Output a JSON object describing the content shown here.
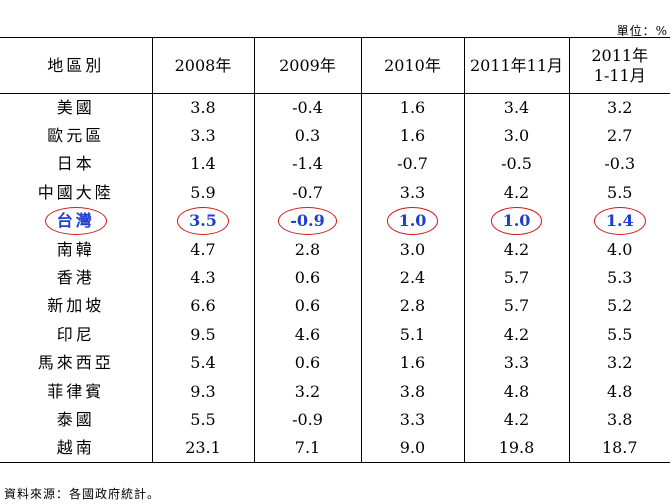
{
  "unit_label": "單位：%",
  "headers": [
    "地區別",
    "2008年",
    "2009年",
    "2010年",
    "2011年11月",
    "2011年",
    "1-11月"
  ],
  "rows": [
    {
      "region": "美國",
      "values": [
        "3.8",
        "-0.4",
        "1.6",
        "3.4",
        "3.2"
      ]
    },
    {
      "region": "歐元區",
      "values": [
        "3.3",
        "0.3",
        "1.6",
        "3.0",
        "2.7"
      ]
    },
    {
      "region": "日本",
      "values": [
        "1.4",
        "-1.4",
        "-0.7",
        "-0.5",
        "-0.3"
      ]
    },
    {
      "region": "中國大陸",
      "values": [
        "5.9",
        "-0.7",
        "3.3",
        "4.2",
        "5.5"
      ]
    },
    {
      "region": "台灣",
      "values": [
        "3.5",
        "-0.9",
        "1.0",
        "1.0",
        "1.4"
      ]
    },
    {
      "region": "南韓",
      "values": [
        "4.7",
        "2.8",
        "3.0",
        "4.2",
        "4.0"
      ]
    },
    {
      "region": "香港",
      "values": [
        "4.3",
        "0.6",
        "2.4",
        "5.7",
        "5.3"
      ]
    },
    {
      "region": "新加坡",
      "values": [
        "6.6",
        "0.6",
        "2.8",
        "5.7",
        "5.2"
      ]
    },
    {
      "region": "印尼",
      "values": [
        "9.5",
        "4.6",
        "5.1",
        "4.2",
        "5.5"
      ]
    },
    {
      "region": "馬來西亞",
      "values": [
        "5.4",
        "0.6",
        "1.6",
        "3.3",
        "3.2"
      ]
    },
    {
      "region": "菲律賓",
      "values": [
        "9.3",
        "3.2",
        "3.8",
        "4.8",
        "4.8"
      ]
    },
    {
      "region": "泰國",
      "values": [
        "5.5",
        "-0.9",
        "3.3",
        "4.2",
        "3.8"
      ]
    },
    {
      "region": "越南",
      "values": [
        "23.1",
        "7.1",
        "9.0",
        "19.8",
        "18.7"
      ]
    }
  ],
  "highlight_color": "#d01818",
  "highlight_text_color": "#1f3fd0",
  "source_note": "資料來源：各國政府統計。"
}
